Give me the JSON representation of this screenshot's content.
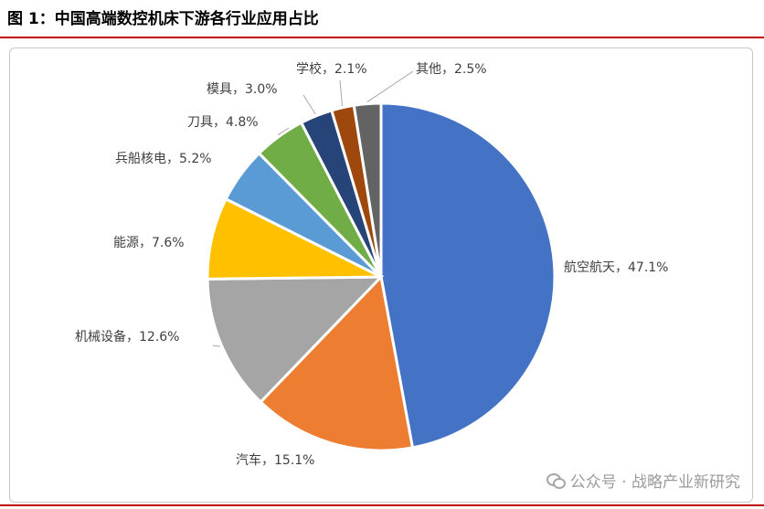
{
  "header": {
    "title": "图 1：中国高端数控机床下游各行业应用占比"
  },
  "watermark": {
    "text": "公众号 · 战略产业新研究",
    "icon": "wechat-icon"
  },
  "chart_data": {
    "type": "pie",
    "unit": "%",
    "slices": [
      {
        "label": "航空航天",
        "value": 47.1,
        "text": "航空航天，47.1%",
        "color": "#4472C4"
      },
      {
        "label": "汽车",
        "value": 15.1,
        "text": "汽车，15.1%",
        "color": "#ED7D31"
      },
      {
        "label": "机械设备",
        "value": 12.6,
        "text": "机械设备，12.6%",
        "color": "#A5A5A5"
      },
      {
        "label": "能源",
        "value": 7.6,
        "text": "能源，7.6%",
        "color": "#FFC000"
      },
      {
        "label": "兵船核电",
        "value": 5.2,
        "text": "兵船核电，5.2%",
        "color": "#5B9BD5"
      },
      {
        "label": "刀具",
        "value": 4.8,
        "text": "刀具，4.8%",
        "color": "#70AD47"
      },
      {
        "label": "模具",
        "value": 3.0,
        "text": "模具，3.0%",
        "color": "#264478"
      },
      {
        "label": "学校",
        "value": 2.1,
        "text": "学校，2.1%",
        "color": "#9E480E"
      },
      {
        "label": "其他",
        "value": 2.5,
        "text": "其他，2.5%",
        "color": "#636363"
      }
    ]
  }
}
